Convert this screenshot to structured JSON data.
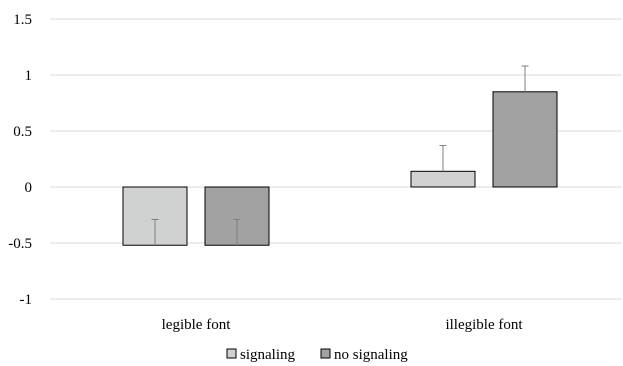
{
  "chart_data": {
    "type": "bar",
    "categories": [
      "legible font",
      "illegible font"
    ],
    "series": [
      {
        "name": "signaling",
        "values": [
          -0.52,
          0.14
        ],
        "error": [
          0.23,
          0.23
        ],
        "color": "#d0d2d1"
      },
      {
        "name": "no signaling",
        "values": [
          -0.52,
          0.85
        ],
        "error": [
          0.23,
          0.23
        ],
        "color": "#a2a2a2"
      }
    ],
    "yticks": [
      "1.5",
      "1",
      "0.5",
      "0",
      "-0.5",
      "-1"
    ],
    "ylim": [
      -1,
      1.5
    ],
    "ytick_step": 0.5,
    "grid": true,
    "legend_position": "bottom",
    "title": "",
    "xlabel": "",
    "ylabel": "",
    "colors": {
      "grid": "#d9d9d9",
      "bar_border": "#000000",
      "error_bar": "#7f7f7f"
    }
  }
}
